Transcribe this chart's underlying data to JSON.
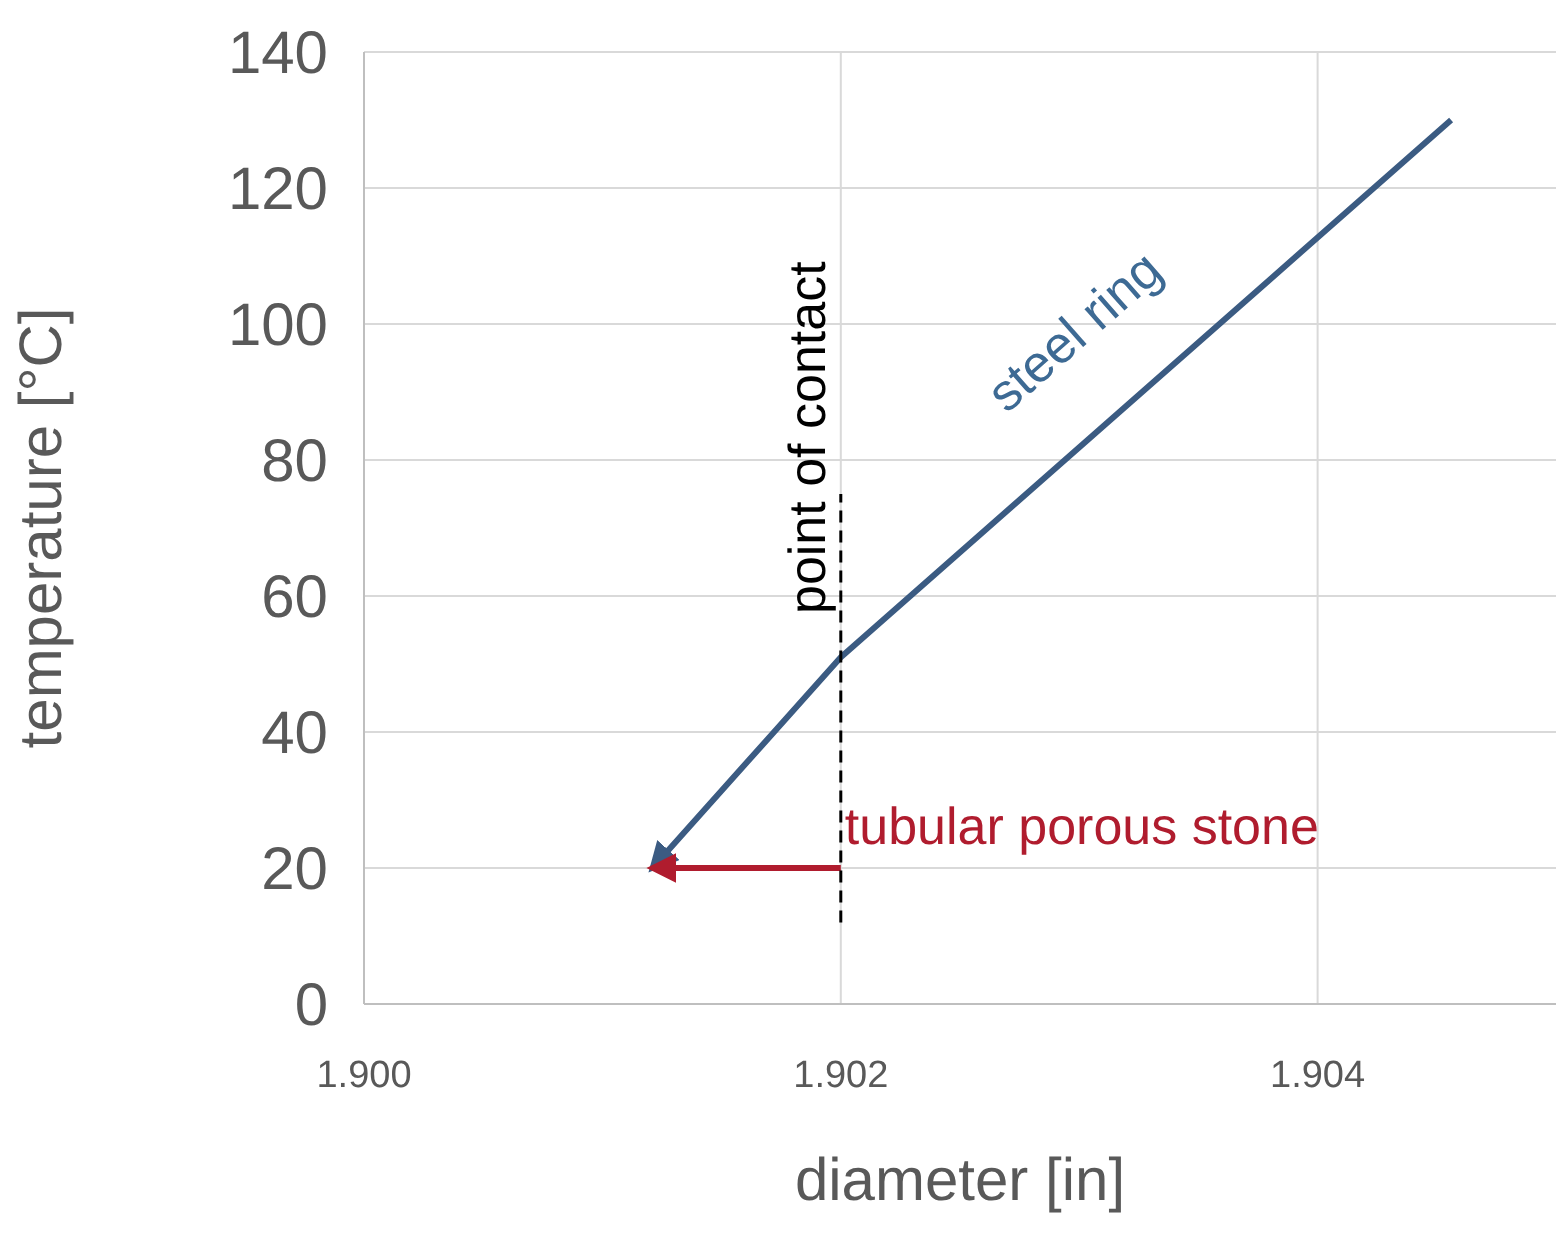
{
  "chart_data": {
    "type": "line",
    "xlabel": "diameter  [in]",
    "ylabel": "temperature  [°C]",
    "xlim": [
      1.9,
      1.905
    ],
    "xticks": [
      {
        "value": 1.9,
        "label": "1.900"
      },
      {
        "value": 1.902,
        "label": "1.902"
      },
      {
        "value": 1.904,
        "label": "1.904"
      }
    ],
    "ylim": [
      0,
      140
    ],
    "yticks": [
      0,
      20,
      40,
      60,
      80,
      100,
      120,
      140
    ],
    "grid": true,
    "series": [
      {
        "name": "steel ring",
        "color": "#3b5b82",
        "x": [
          1.90456,
          1.902,
          1.90121
        ],
        "values": [
          130,
          51,
          20
        ],
        "line_style": "solid"
      },
      {
        "name": "tubular porous stone",
        "color": "#b01c2e",
        "x": [
          1.902,
          1.90121
        ],
        "values": [
          20,
          20
        ],
        "line_style": "solid"
      },
      {
        "name": "point of contact",
        "color": "#000000",
        "x": [
          1.902,
          1.902
        ],
        "values": [
          12,
          75
        ],
        "line_style": "dashed"
      }
    ]
  }
}
